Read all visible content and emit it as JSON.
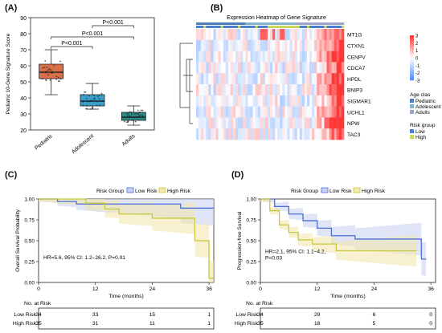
{
  "panels": {
    "A": {
      "label": "(A)",
      "chart_data": {
        "type": "box",
        "ylabel": "Pediatric 10-Gene Signature Score",
        "ylim": [
          20,
          90
        ],
        "yticks": [
          20,
          30,
          40,
          50,
          60,
          70,
          80,
          90
        ],
        "categories": [
          "Pediatric",
          "Adolescent",
          "Adults"
        ],
        "boxes": [
          {
            "min": 42,
            "q1": 52,
            "median": 56,
            "q3": 61,
            "max": 70,
            "color": "#d9704a"
          },
          {
            "min": 33,
            "q1": 35,
            "median": 38,
            "q3": 42,
            "max": 49,
            "color": "#3a9fc8"
          },
          {
            "min": 23,
            "q1": 26,
            "median": 28,
            "q3": 31,
            "max": 35,
            "color": "#2c8a86"
          }
        ],
        "comparisons": [
          {
            "from": 0,
            "to": 1,
            "label": "P<0.001"
          },
          {
            "from": 0,
            "to": 2,
            "label": "P<0.001"
          },
          {
            "from": 1,
            "to": 2,
            "label": "P<0.001"
          }
        ]
      }
    },
    "B": {
      "label": "(B)",
      "chart_data": {
        "type": "heatmap",
        "title": "Expression Heatmap of Gene Signature",
        "genes": [
          "MT1G",
          "CTXN1",
          "CENPV",
          "CDCA7",
          "HPDL",
          "BNIP3",
          "SIGMAR1",
          "UCHL1",
          "NPW",
          "TAC3"
        ],
        "colorbar_ticks": [
          "3",
          "2",
          "1",
          "0",
          "-1",
          "-2",
          "-3"
        ],
        "legend_age_title": "Age clas",
        "age_groups": [
          {
            "label": "Pediatric",
            "color": "#4a7fb8"
          },
          {
            "label": "Adolescent",
            "color": "#7fb5c9"
          },
          {
            "label": "Adults",
            "color": "#9aa6c4"
          }
        ],
        "legend_risk_title": "Risk group",
        "risk_groups": [
          {
            "label": "Low",
            "color": "#4a7fd0"
          },
          {
            "label": "High",
            "color": "#cbd65a"
          }
        ]
      }
    },
    "C": {
      "label": "(C)",
      "chart_data": {
        "type": "line",
        "legend_title": "Risk Group",
        "ylabel": "Overall Survival Probability",
        "xlabel": "Time (months)",
        "xticks": [
          0,
          12,
          24,
          36
        ],
        "yticks": [
          0.0,
          0.25,
          0.5,
          0.75,
          1.0
        ],
        "ytick_labels": [
          "0.00",
          "0.25",
          "0.50",
          "0.75",
          "1.00"
        ],
        "xlim": [
          0,
          37
        ],
        "annotation": "HR=5.6, 95% CI: 1.2–26.2, P=0.01",
        "series": [
          {
            "name": "Low Risk",
            "color": "#4a6fd8",
            "band": "#c9d2f2",
            "x": [
              0,
              4,
              4,
              8,
              8,
              30,
              30,
              37
            ],
            "y": [
              1,
              1,
              0.97,
              0.97,
              0.94,
              0.94,
              0.89,
              0.89
            ]
          },
          {
            "name": "High Risk",
            "color": "#c8c83a",
            "band": "#f2e8b0",
            "x": [
              0,
              10,
              10,
              14,
              14,
              17,
              17,
              24,
              24,
              33,
              33,
              36,
              36,
              37
            ],
            "y": [
              1,
              1,
              0.95,
              0.95,
              0.88,
              0.88,
              0.82,
              0.82,
              0.77,
              0.77,
              0.5,
              0.5,
              0.05,
              0.05
            ]
          }
        ],
        "risk_table_title": "No. at Risk",
        "risk_table": [
          {
            "label": "Low Risk",
            "values": [
              "34",
              "33",
              "15",
              "1"
            ]
          },
          {
            "label": "High Risk",
            "values": [
              "35",
              "31",
              "11",
              "1"
            ]
          }
        ]
      }
    },
    "D": {
      "label": "(D)",
      "chart_data": {
        "type": "line",
        "legend_title": "Risk Group",
        "ylabel": "Progression-free Survival",
        "xlabel": "Time (months)",
        "xticks": [
          0,
          12,
          24,
          36
        ],
        "yticks": [
          0.0,
          0.25,
          0.5,
          0.75,
          1.0
        ],
        "ytick_labels": [
          "0.00",
          "0.25",
          "0.50",
          "0.75",
          "1.00"
        ],
        "xlim": [
          0,
          37
        ],
        "annotation_lines": [
          "HR=2.1, 95% CI: 1.1–4.2,",
          "P=0.03"
        ],
        "series": [
          {
            "name": "Low Risk",
            "color": "#4a6fd8",
            "band": "#c9d2f2",
            "x": [
              0,
              3,
              3,
              6,
              6,
              9,
              9,
              12,
              12,
              15,
              15,
              20,
              20,
              34,
              34,
              35
            ],
            "y": [
              1,
              1,
              0.91,
              0.91,
              0.82,
              0.82,
              0.74,
              0.74,
              0.65,
              0.65,
              0.56,
              0.56,
              0.52,
              0.52,
              0.28,
              0.28
            ]
          },
          {
            "name": "High Risk",
            "color": "#c8c83a",
            "band": "#f2e8b0",
            "x": [
              0,
              2,
              2,
              4,
              4,
              6,
              6,
              8,
              8,
              11,
              11,
              16,
              16,
              33
            ],
            "y": [
              1,
              1,
              0.86,
              0.86,
              0.69,
              0.69,
              0.6,
              0.6,
              0.51,
              0.51,
              0.46,
              0.46,
              0.38,
              0.38
            ]
          }
        ],
        "risk_table_title": "No. at Risk",
        "risk_table": [
          {
            "label": "Low Risk",
            "values": [
              "34",
              "29",
              "6",
              "0"
            ]
          },
          {
            "label": "High Risk",
            "values": [
              "35",
              "18",
              "5",
              "0"
            ]
          }
        ]
      }
    }
  }
}
